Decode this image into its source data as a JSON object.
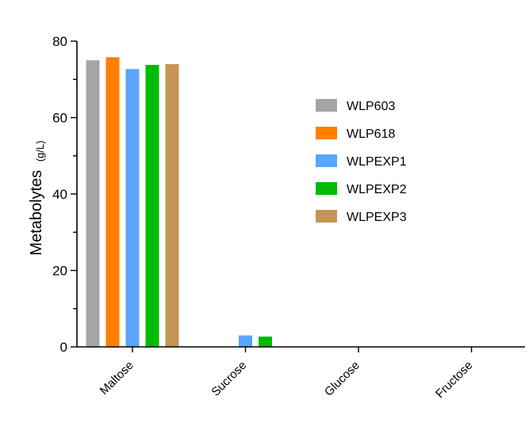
{
  "chart_data": {
    "type": "bar",
    "categories": [
      "Maltose",
      "Sucrose",
      "Glucose",
      "Fructose"
    ],
    "series": [
      {
        "name": "WLP603",
        "color": "#a5a5a5",
        "values": [
          75.0,
          0,
          0,
          0
        ]
      },
      {
        "name": "WLP618",
        "color": "#ff8000",
        "values": [
          75.8,
          0,
          0,
          0
        ]
      },
      {
        "name": "WLPEXP1",
        "color": "#5aa5ff",
        "values": [
          72.7,
          3.0,
          0,
          0
        ]
      },
      {
        "name": "WLPEXP2",
        "color": "#00bb00",
        "values": [
          73.8,
          2.7,
          0,
          0
        ]
      },
      {
        "name": "WLPEXP3",
        "color": "#c49554",
        "values": [
          74.0,
          0,
          0,
          0
        ]
      }
    ],
    "title": "",
    "xlabel": "",
    "ylabel": "Metabolytes",
    "ylabel_unit": "(g/L)",
    "ylim": [
      0,
      80
    ],
    "yticks": [
      0,
      20,
      40,
      60,
      80
    ],
    "legend_position": "right"
  }
}
